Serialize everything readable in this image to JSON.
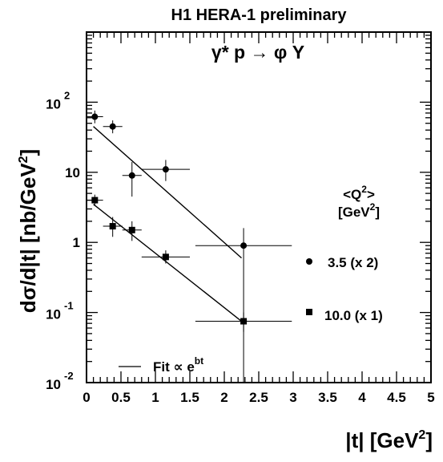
{
  "chart_data": {
    "type": "scatter",
    "title": "H1 HERA-1 preliminary",
    "reaction": "γ* p → φ Y",
    "xlabel": "|t| [GeV",
    "xlabel_sup": "2",
    "xlabel_end": "]",
    "ylabel": "dσ/d|t| [nb/GeV",
    "ylabel_sup": "2",
    "ylabel_end": "]",
    "x_scale": "linear",
    "y_scale": "log",
    "xlim": [
      0,
      5
    ],
    "ylim": [
      0.01,
      1000
    ],
    "x_ticks": [
      "0",
      "0.5",
      "1",
      "1.5",
      "2",
      "2.5",
      "3",
      "3.5",
      "4",
      "4.5",
      "5"
    ],
    "y_ticks": [
      {
        "base": "10",
        "exp": "-2"
      },
      {
        "base": "10",
        "exp": "-1"
      },
      {
        "base": "1",
        "exp": ""
      },
      {
        "base": "10",
        "exp": ""
      },
      {
        "base": "10",
        "exp": "2"
      }
    ],
    "legend_header": "<Q",
    "legend_header_sup": "2",
    "legend_header_end": ">",
    "legend_unit": "[GeV",
    "legend_unit_sup": "2",
    "legend_unit_end": "]",
    "legend_position": "right",
    "fit_label": "Fit ∝ e",
    "fit_label_sup": "bt",
    "series": [
      {
        "name": "3.5 (x 2)",
        "marker": "circle",
        "x": [
          0.12,
          0.38,
          0.66,
          1.15,
          2.28
        ],
        "y": [
          62,
          45,
          9,
          11,
          0.9
        ],
        "y_err_low": [
          12,
          9,
          4.5,
          3.5,
          0.893
        ],
        "y_err_high": [
          14,
          10,
          5,
          4,
          0.7
        ],
        "x_err": [
          0.12,
          0.14,
          0.14,
          0.35,
          0.7
        ],
        "fit": {
          "x": [
            0.1,
            2.25
          ],
          "y": [
            45,
            0.6
          ]
        }
      },
      {
        "name": "10.0 (x 1)",
        "marker": "square",
        "x": [
          0.12,
          0.38,
          0.66,
          1.15,
          2.28
        ],
        "y": [
          4.0,
          1.7,
          1.5,
          0.62,
          0.075
        ],
        "y_err_low": [
          0.7,
          0.5,
          0.45,
          0.12,
          0.022
        ],
        "y_err_high": [
          0.8,
          0.6,
          0.5,
          0.15,
          0.025
        ],
        "x_err": [
          0.12,
          0.14,
          0.14,
          0.35,
          0.7
        ],
        "fit": {
          "x": [
            0.1,
            2.25
          ],
          "y": [
            3.5,
            0.075
          ]
        }
      }
    ]
  }
}
